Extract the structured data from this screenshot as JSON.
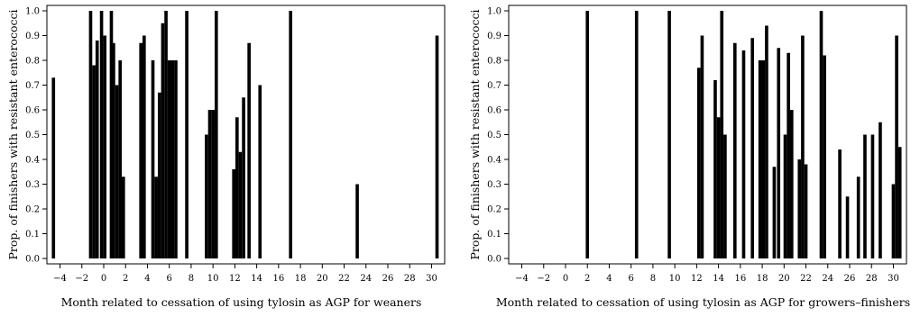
{
  "chart_data": [
    {
      "type": "bar",
      "title": "",
      "xlabel": "Month related to cessation of using tylosin as AGP for weaners",
      "ylabel": "Prop. of finishers with resistant enterococci",
      "xlim": [
        -5.2,
        31.2
      ],
      "ylim": [
        0,
        1
      ],
      "x_ticks": [
        -4,
        -2,
        0,
        2,
        4,
        6,
        8,
        10,
        12,
        14,
        16,
        18,
        20,
        22,
        24,
        26,
        28,
        30
      ],
      "y_ticks": [
        0.0,
        0.1,
        0.2,
        0.3,
        0.4,
        0.5,
        0.6,
        0.7,
        0.8,
        0.9,
        1.0
      ],
      "bar_width_months": 0.3,
      "x": [
        -4.6,
        -1.2,
        -0.9,
        -0.6,
        -0.2,
        0.1,
        0.7,
        0.9,
        1.2,
        1.5,
        1.8,
        3.4,
        3.7,
        4.5,
        4.8,
        5.1,
        5.4,
        5.7,
        6.0,
        6.3,
        6.6,
        7.6,
        9.4,
        9.7,
        10.0,
        10.3,
        11.9,
        12.2,
        12.5,
        12.8,
        13.3,
        14.3,
        17.1,
        23.2,
        30.5
      ],
      "values": [
        0.73,
        1.0,
        0.78,
        0.88,
        1.0,
        0.9,
        1.0,
        0.87,
        0.7,
        0.8,
        0.33,
        0.87,
        0.9,
        0.8,
        0.33,
        0.67,
        0.95,
        1.0,
        0.8,
        0.8,
        0.8,
        1.0,
        0.5,
        0.6,
        0.6,
        1.0,
        0.36,
        0.57,
        0.43,
        0.65,
        0.87,
        0.7,
        1.0,
        0.3,
        0.9
      ],
      "bar_color": "#000000"
    },
    {
      "type": "bar",
      "title": "",
      "xlabel": "Month related to cessation of using tylosin as AGP for growers–finishers",
      "ylabel": "Prop. of finishers with resistant enterococci",
      "xlim": [
        -5.2,
        31.2
      ],
      "ylim": [
        0,
        1
      ],
      "x_ticks": [
        -4,
        -2,
        0,
        2,
        4,
        6,
        8,
        10,
        12,
        14,
        16,
        18,
        20,
        22,
        24,
        26,
        28,
        30
      ],
      "y_ticks": [
        0.0,
        0.1,
        0.2,
        0.3,
        0.4,
        0.5,
        0.6,
        0.7,
        0.8,
        0.9,
        1.0
      ],
      "bar_width_months": 0.3,
      "x": [
        2.0,
        6.5,
        9.5,
        12.2,
        12.5,
        13.7,
        14.0,
        14.3,
        14.6,
        15.5,
        16.3,
        17.1,
        17.8,
        18.1,
        18.4,
        19.1,
        19.5,
        20.1,
        20.4,
        20.7,
        21.4,
        21.7,
        22.0,
        23.4,
        23.7,
        25.1,
        25.8,
        26.8,
        27.4,
        28.1,
        28.8,
        30.0,
        30.3,
        30.6
      ],
      "values": [
        1.0,
        1.0,
        1.0,
        0.77,
        0.9,
        0.72,
        0.57,
        1.0,
        0.5,
        0.87,
        0.84,
        0.89,
        0.8,
        0.8,
        0.94,
        0.37,
        0.85,
        0.5,
        0.83,
        0.6,
        0.4,
        0.9,
        0.38,
        1.0,
        0.82,
        0.44,
        0.25,
        0.33,
        0.5,
        0.5,
        0.55,
        0.3,
        0.9,
        0.45
      ],
      "bar_color": "#000000"
    }
  ]
}
